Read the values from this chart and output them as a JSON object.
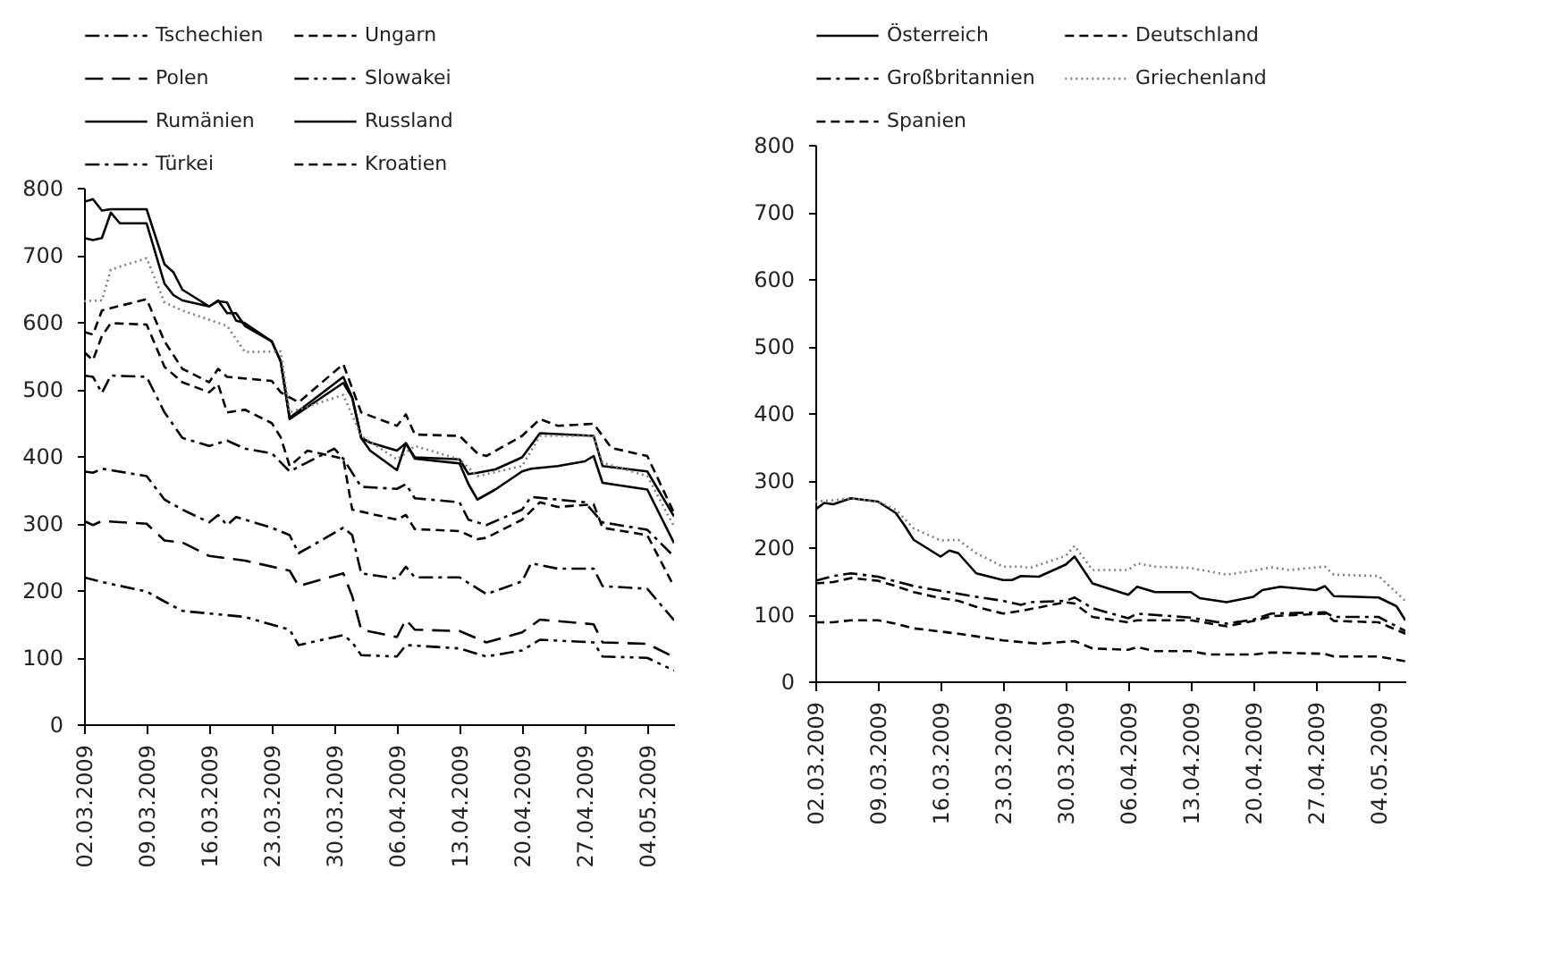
{
  "chart_data": [
    {
      "type": "line",
      "legend": "top",
      "xlim": [
        "2009-03-02",
        "2009-05-07"
      ],
      "ylim": [
        0,
        800
      ],
      "yticks": [
        0,
        100,
        200,
        300,
        400,
        500,
        600,
        700,
        800
      ],
      "xticks": [
        {
          "value": "2009-03-02",
          "label": "02.03.2009"
        },
        {
          "value": "2009-03-09",
          "label": "09.03.2009"
        },
        {
          "value": "2009-03-16",
          "label": "16.03.2009"
        },
        {
          "value": "2009-03-23",
          "label": "23.03.2009"
        },
        {
          "value": "2009-03-30",
          "label": "30.03.2009"
        },
        {
          "value": "2009-04-06",
          "label": "06.04.2009"
        },
        {
          "value": "2009-04-13",
          "label": "13.04.2009"
        },
        {
          "value": "2009-04-20",
          "label": "20.04.2009"
        },
        {
          "value": "2009-04-27",
          "label": "27.04.2009"
        },
        {
          "value": "2009-05-04",
          "label": "04.05.2009"
        }
      ],
      "series": [
        {
          "name": "Tschechien",
          "color": "#000000",
          "line_style": "dashdot",
          "x": [
            "2009-03-02",
            "2009-03-03",
            "2009-03-04",
            "2009-03-09",
            "2009-03-11",
            "2009-03-13",
            "2009-03-16",
            "2009-03-17",
            "2009-03-18",
            "2009-03-19",
            "2009-03-23",
            "2009-03-25",
            "2009-03-26",
            "2009-03-31",
            "2009-04-01",
            "2009-04-02",
            "2009-04-06",
            "2009-04-07",
            "2009-04-08",
            "2009-04-13",
            "2009-04-16",
            "2009-04-20",
            "2009-04-21",
            "2009-04-24",
            "2009-04-28",
            "2009-04-29",
            "2009-05-04",
            "2009-05-07"
          ],
          "values": [
            377,
            375,
            381,
            370,
            335,
            320,
            301,
            312,
            297,
            309,
            293,
            282,
            255,
            293,
            282,
            225,
            217,
            235,
            219,
            219,
            194,
            213,
            240,
            232,
            232,
            206,
            202,
            155
          ]
        },
        {
          "name": "Ungarn",
          "color": "#000000",
          "line_style": "dashed",
          "x": [
            "2009-03-02",
            "2009-03-03",
            "2009-03-04",
            "2009-03-09",
            "2009-03-11",
            "2009-03-13",
            "2009-03-16",
            "2009-03-17",
            "2009-03-18",
            "2009-03-23",
            "2009-03-24",
            "2009-03-26",
            "2009-03-31",
            "2009-04-02",
            "2009-04-06",
            "2009-04-07",
            "2009-04-08",
            "2009-04-13",
            "2009-04-15",
            "2009-04-16",
            "2009-04-20",
            "2009-04-22",
            "2009-04-24",
            "2009-04-28",
            "2009-04-30",
            "2009-05-04",
            "2009-05-07"
          ],
          "values": [
            585,
            581,
            617,
            634,
            571,
            530,
            510,
            530,
            518,
            512,
            495,
            480,
            537,
            465,
            445,
            462,
            432,
            430,
            404,
            400,
            430,
            455,
            445,
            448,
            412,
            400,
            315
          ]
        },
        {
          "name": "Polen",
          "color": "#000000",
          "line_style": "longdash",
          "x": [
            "2009-03-02",
            "2009-03-03",
            "2009-03-04",
            "2009-03-09",
            "2009-03-11",
            "2009-03-13",
            "2009-03-16",
            "2009-03-20",
            "2009-03-25",
            "2009-03-26",
            "2009-03-31",
            "2009-04-01",
            "2009-04-02",
            "2009-04-06",
            "2009-04-07",
            "2009-04-08",
            "2009-04-13",
            "2009-04-16",
            "2009-04-20",
            "2009-04-22",
            "2009-04-28",
            "2009-04-29",
            "2009-05-04",
            "2009-05-07"
          ],
          "values": [
            303,
            297,
            303,
            299,
            274,
            271,
            251,
            244,
            229,
            206,
            225,
            191,
            141,
            130,
            156,
            141,
            139,
            122,
            137,
            156,
            149,
            122,
            120,
            100
          ]
        },
        {
          "name": "Slowakei",
          "color": "#000000",
          "line_style": "dashdotdot",
          "x": [
            "2009-03-02",
            "2009-03-04",
            "2009-03-09",
            "2009-03-11",
            "2009-03-13",
            "2009-03-20",
            "2009-03-25",
            "2009-03-26",
            "2009-03-31",
            "2009-04-01",
            "2009-04-02",
            "2009-04-06",
            "2009-04-07",
            "2009-04-13",
            "2009-04-16",
            "2009-04-20",
            "2009-04-22",
            "2009-04-28",
            "2009-04-29",
            "2009-05-04",
            "2009-05-07"
          ],
          "values": [
            219,
            212,
            198,
            183,
            169,
            160,
            141,
            118,
            133,
            122,
            103,
            101,
            118,
            113,
            101,
            110,
            126,
            122,
            101,
            99,
            80
          ]
        },
        {
          "name": "Rumänien",
          "color": "#000000",
          "line_style": "solid",
          "x": [
            "2009-03-02",
            "2009-03-03",
            "2009-03-04",
            "2009-03-05",
            "2009-03-06",
            "2009-03-09",
            "2009-03-11",
            "2009-03-12",
            "2009-03-13",
            "2009-03-16",
            "2009-03-17",
            "2009-03-18",
            "2009-03-19",
            "2009-03-20",
            "2009-03-23",
            "2009-03-24",
            "2009-03-25",
            "2009-03-31",
            "2009-04-01",
            "2009-04-02",
            "2009-04-03",
            "2009-04-06",
            "2009-04-07",
            "2009-04-08",
            "2009-04-13",
            "2009-04-14",
            "2009-04-15",
            "2009-04-17",
            "2009-04-20",
            "2009-04-22",
            "2009-04-28",
            "2009-04-29",
            "2009-05-04",
            "2009-05-07"
          ],
          "values": [
            725,
            722,
            725,
            763,
            747,
            747,
            657,
            640,
            632,
            623,
            631,
            629,
            602,
            598,
            571,
            541,
            455,
            509,
            487,
            427,
            408,
            379,
            419,
            398,
            395,
            373,
            375,
            380,
            398,
            434,
            430,
            385,
            377,
            310
          ]
        },
        {
          "name": "Russland",
          "color": "#000000",
          "line_style": "solid",
          "x": [
            "2009-03-02",
            "2009-03-03",
            "2009-03-04",
            "2009-03-05",
            "2009-03-09",
            "2009-03-11",
            "2009-03-12",
            "2009-03-13",
            "2009-03-16",
            "2009-03-17",
            "2009-03-18",
            "2009-03-19",
            "2009-03-20",
            "2009-03-23",
            "2009-03-24",
            "2009-03-25",
            "2009-03-31",
            "2009-04-01",
            "2009-04-02",
            "2009-04-03",
            "2009-04-06",
            "2009-04-07",
            "2009-04-08",
            "2009-04-13",
            "2009-04-14",
            "2009-04-15",
            "2009-04-17",
            "2009-04-20",
            "2009-04-21",
            "2009-04-24",
            "2009-04-27",
            "2009-04-28",
            "2009-04-29",
            "2009-05-04",
            "2009-05-07"
          ],
          "values": [
            779,
            783,
            766,
            768,
            768,
            686,
            674,
            648,
            623,
            632,
            613,
            613,
            594,
            571,
            541,
            457,
            518,
            487,
            427,
            420,
            408,
            419,
            396,
            389,
            358,
            335,
            350,
            377,
            381,
            385,
            392,
            400,
            360,
            350,
            270
          ]
        },
        {
          "name": "Türkei",
          "color": "#000000",
          "line_style": "dashdot",
          "x": [
            "2009-03-02",
            "2009-03-03",
            "2009-03-04",
            "2009-03-05",
            "2009-03-09",
            "2009-03-11",
            "2009-03-13",
            "2009-03-16",
            "2009-03-18",
            "2009-03-20",
            "2009-03-23",
            "2009-03-25",
            "2009-03-30",
            "2009-03-31",
            "2009-04-02",
            "2009-04-06",
            "2009-04-07",
            "2009-04-08",
            "2009-04-13",
            "2009-04-14",
            "2009-04-16",
            "2009-04-20",
            "2009-04-21",
            "2009-04-27",
            "2009-04-29",
            "2009-05-04",
            "2009-05-07"
          ],
          "values": [
            520,
            518,
            494,
            520,
            518,
            465,
            427,
            415,
            423,
            411,
            404,
            377,
            411,
            396,
            354,
            351,
            358,
            337,
            331,
            305,
            297,
            320,
            339,
            331,
            301,
            290,
            250
          ]
        },
        {
          "name": "Kroatien",
          "color": "#000000",
          "line_style": "dashed",
          "x": [
            "2009-03-02",
            "2009-03-03",
            "2009-03-04",
            "2009-03-05",
            "2009-03-09",
            "2009-03-11",
            "2009-03-13",
            "2009-03-16",
            "2009-03-17",
            "2009-03-18",
            "2009-03-20",
            "2009-03-23",
            "2009-03-24",
            "2009-03-25",
            "2009-03-27",
            "2009-03-31",
            "2009-04-01",
            "2009-04-06",
            "2009-04-07",
            "2009-04-08",
            "2009-04-13",
            "2009-04-15",
            "2009-04-16",
            "2009-04-20",
            "2009-04-22",
            "2009-04-24",
            "2009-04-28",
            "2009-04-29",
            "2009-05-04",
            "2009-05-07"
          ],
          "values": [
            555,
            543,
            579,
            598,
            596,
            533,
            510,
            495,
            507,
            465,
            469,
            449,
            428,
            385,
            408,
            396,
            320,
            305,
            312,
            291,
            288,
            276,
            278,
            305,
            331,
            324,
            328,
            293,
            282,
            205
          ]
        },
        {
          "color": "#7f7f7f",
          "line_style": "dotted",
          "x": [
            "2009-03-02",
            "2009-03-04",
            "2009-03-05",
            "2009-03-09",
            "2009-03-11",
            "2009-03-13",
            "2009-03-18",
            "2009-03-20",
            "2009-03-24",
            "2009-03-25",
            "2009-03-31",
            "2009-04-02",
            "2009-04-06",
            "2009-04-08",
            "2009-04-13",
            "2009-04-15",
            "2009-04-20",
            "2009-04-22",
            "2009-04-28",
            "2009-04-29",
            "2009-05-04",
            "2009-05-07"
          ],
          "values": [
            631,
            632,
            678,
            695,
            629,
            617,
            594,
            555,
            556,
            465,
            491,
            430,
            395,
            415,
            395,
            370,
            385,
            430,
            430,
            390,
            370,
            295
          ]
        }
      ]
    },
    {
      "type": "line",
      "legend": "top",
      "xlim": [
        "2009-03-02",
        "2009-05-07"
      ],
      "ylim": [
        0,
        800
      ],
      "yticks": [
        0,
        100,
        200,
        300,
        400,
        500,
        600,
        700,
        800
      ],
      "xticks": [
        {
          "value": "2009-03-02",
          "label": "02.03.2009"
        },
        {
          "value": "2009-03-09",
          "label": "09.03.2009"
        },
        {
          "value": "2009-03-16",
          "label": "16.03.2009"
        },
        {
          "value": "2009-03-23",
          "label": "23.03.2009"
        },
        {
          "value": "2009-03-30",
          "label": "30.03.2009"
        },
        {
          "value": "2009-04-06",
          "label": "06.04.2009"
        },
        {
          "value": "2009-04-13",
          "label": "13.04.2009"
        },
        {
          "value": "2009-04-20",
          "label": "20.04.2009"
        },
        {
          "value": "2009-04-27",
          "label": "27.04.2009"
        },
        {
          "value": "2009-05-04",
          "label": "04.05.2009"
        }
      ],
      "series": [
        {
          "name": "Österreich",
          "color": "#000000",
          "line_style": "solid",
          "x": [
            "2009-03-02",
            "2009-03-03",
            "2009-03-04",
            "2009-03-06",
            "2009-03-09",
            "2009-03-11",
            "2009-03-12",
            "2009-03-13",
            "2009-03-16",
            "2009-03-17",
            "2009-03-18",
            "2009-03-20",
            "2009-03-23",
            "2009-03-24",
            "2009-03-25",
            "2009-03-27",
            "2009-03-30",
            "2009-03-31",
            "2009-04-02",
            "2009-04-06",
            "2009-04-07",
            "2009-04-09",
            "2009-04-13",
            "2009-04-14",
            "2009-04-17",
            "2009-04-20",
            "2009-04-21",
            "2009-04-23",
            "2009-04-27",
            "2009-04-28",
            "2009-04-29",
            "2009-05-04",
            "2009-05-06",
            "2009-05-07"
          ],
          "values": [
            256,
            266,
            264,
            273,
            268,
            251,
            232,
            211,
            186,
            195,
            191,
            161,
            151,
            151,
            157,
            156,
            174,
            186,
            146,
            129,
            141,
            133,
            133,
            124,
            118,
            126,
            136,
            141,
            136,
            142,
            127,
            125,
            112,
            91
          ]
        },
        {
          "name": "Deutschland",
          "color": "#000000",
          "line_style": "dashed",
          "x": [
            "2009-03-02",
            "2009-03-04",
            "2009-03-06",
            "2009-03-09",
            "2009-03-11",
            "2009-03-13",
            "2009-03-18",
            "2009-03-23",
            "2009-03-27",
            "2009-03-31",
            "2009-04-02",
            "2009-04-06",
            "2009-04-07",
            "2009-04-09",
            "2009-04-13",
            "2009-04-15",
            "2009-04-20",
            "2009-04-22",
            "2009-04-28",
            "2009-04-29",
            "2009-05-04",
            "2009-05-07"
          ],
          "values": [
            88,
            88,
            91,
            91,
            86,
            79,
            71,
            61,
            56,
            60,
            49,
            47,
            51,
            45,
            45,
            40,
            40,
            43,
            41,
            37,
            37,
            30
          ]
        },
        {
          "name": "Großbritannien",
          "color": "#000000",
          "line_style": "dashdot",
          "x": [
            "2009-03-02",
            "2009-03-04",
            "2009-03-06",
            "2009-03-09",
            "2009-03-13",
            "2009-03-16",
            "2009-03-20",
            "2009-03-23",
            "2009-03-25",
            "2009-03-26",
            "2009-03-30",
            "2009-03-31",
            "2009-04-02",
            "2009-04-06",
            "2009-04-07",
            "2009-04-13",
            "2009-04-17",
            "2009-04-20",
            "2009-04-22",
            "2009-04-28",
            "2009-04-29",
            "2009-05-04",
            "2009-05-07"
          ],
          "values": [
            150,
            157,
            161,
            156,
            142,
            135,
            126,
            120,
            114,
            118,
            120,
            125,
            109,
            94,
            101,
            95,
            86,
            92,
            101,
            103,
            96,
            96,
            75
          ]
        },
        {
          "name": "Griechenland",
          "color": "#7f7f7f",
          "line_style": "dotted",
          "x": [
            "2009-03-02",
            "2009-03-04",
            "2009-03-06",
            "2009-03-09",
            "2009-03-11",
            "2009-03-13",
            "2009-03-16",
            "2009-03-18",
            "2009-03-20",
            "2009-03-23",
            "2009-03-25",
            "2009-03-26",
            "2009-03-30",
            "2009-03-31",
            "2009-04-02",
            "2009-04-06",
            "2009-04-07",
            "2009-04-09",
            "2009-04-13",
            "2009-04-17",
            "2009-04-20",
            "2009-04-22",
            "2009-04-24",
            "2009-04-28",
            "2009-04-29",
            "2009-05-04",
            "2009-05-07"
          ],
          "values": [
            268,
            270,
            273,
            268,
            256,
            228,
            210,
            211,
            191,
            171,
            171,
            169,
            187,
            202,
            166,
            166,
            176,
            171,
            169,
            159,
            165,
            170,
            166,
            171,
            159,
            157,
            120
          ]
        },
        {
          "name": "Spanien",
          "color": "#000000",
          "line_style": "dashed",
          "x": [
            "2009-03-02",
            "2009-03-04",
            "2009-03-06",
            "2009-03-09",
            "2009-03-11",
            "2009-03-13",
            "2009-03-16",
            "2009-03-18",
            "2009-03-20",
            "2009-03-23",
            "2009-03-25",
            "2009-03-30",
            "2009-03-31",
            "2009-04-02",
            "2009-04-06",
            "2009-04-07",
            "2009-04-13",
            "2009-04-17",
            "2009-04-20",
            "2009-04-22",
            "2009-04-28",
            "2009-04-29",
            "2009-05-04",
            "2009-05-07"
          ],
          "values": [
            146,
            148,
            154,
            150,
            142,
            133,
            124,
            120,
            111,
            101,
            105,
            118,
            116,
            96,
            88,
            91,
            91,
            82,
            90,
            97,
            101,
            90,
            88,
            71
          ]
        }
      ]
    }
  ]
}
